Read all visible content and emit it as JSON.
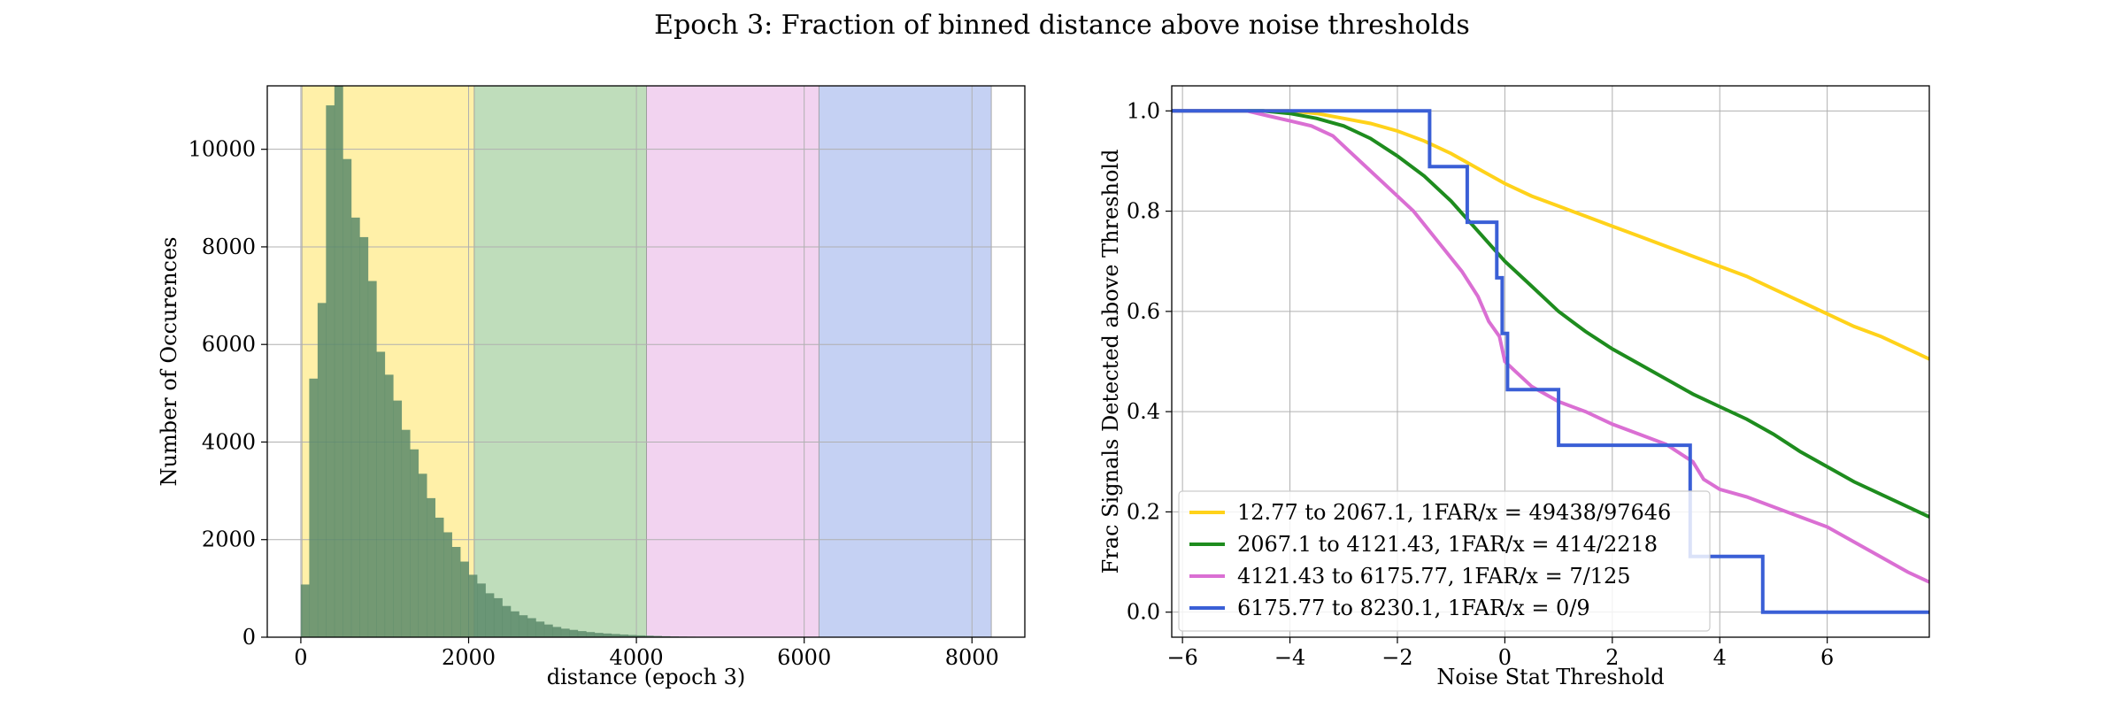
{
  "figure": {
    "suptitle": "Epoch 3: Fraction of binned distance above noise thresholds"
  },
  "chart_data": [
    {
      "type": "bar",
      "subtype": "histogram",
      "xlabel": "distance (epoch 3)",
      "ylabel": "Number of Occurences",
      "xlim": [
        -400,
        8630
      ],
      "ylim": [
        0,
        11300
      ],
      "xticks": [
        0,
        2000,
        4000,
        6000,
        8000
      ],
      "yticks": [
        0,
        2000,
        4000,
        6000,
        8000,
        10000
      ],
      "grid": true,
      "bar_color": "#5a8a6a",
      "bin_width": 100,
      "bin_start": 0,
      "values": [
        1080,
        5300,
        6850,
        10900,
        11300,
        9800,
        8600,
        8200,
        7300,
        5850,
        5380,
        4850,
        4250,
        3850,
        3350,
        2850,
        2450,
        2150,
        1850,
        1550,
        1280,
        1100,
        900,
        800,
        640,
        530,
        450,
        390,
        320,
        260,
        210,
        175,
        150,
        125,
        105,
        88,
        76,
        65,
        55,
        45,
        38,
        32,
        26,
        20,
        15,
        12,
        10,
        9,
        8,
        6,
        5,
        4,
        4,
        3,
        2,
        2,
        1,
        1,
        1
      ],
      "bands": [
        {
          "from": 12.77,
          "to": 2067.1,
          "color": "#fff0a8"
        },
        {
          "from": 2067.1,
          "to": 4121.43,
          "color": "#bfddbb"
        },
        {
          "from": 4121.43,
          "to": 6175.77,
          "color": "#f2d3f0"
        },
        {
          "from": 6175.77,
          "to": 8230.1,
          "color": "#c5d1f3"
        }
      ]
    },
    {
      "type": "line",
      "subtype": "step",
      "xlabel": "Noise Stat Threshold",
      "ylabel": "Frac Signals Detected above Threshold",
      "xlim": [
        -6.2,
        7.9
      ],
      "ylim": [
        -0.05,
        1.05
      ],
      "xticks": [
        -6,
        -4,
        -2,
        0,
        2,
        4,
        6
      ],
      "yticks": [
        0.0,
        0.2,
        0.4,
        0.6,
        0.8,
        1.0
      ],
      "grid": true,
      "legend_position": "lower-left",
      "series": [
        {
          "name": "12.77 to 2067.1, 1FAR/x = 49438/97646",
          "color": "#ffd21a",
          "x": [
            -6.2,
            -4.0,
            -3.5,
            -3.0,
            -2.5,
            -2.0,
            -1.5,
            -1.0,
            -0.5,
            0.0,
            0.5,
            1.0,
            1.5,
            2.0,
            2.5,
            3.0,
            3.5,
            4.0,
            4.5,
            5.0,
            5.5,
            6.0,
            6.5,
            7.0,
            7.5,
            7.9
          ],
          "y": [
            1.0,
            1.0,
            0.995,
            0.985,
            0.975,
            0.96,
            0.94,
            0.915,
            0.885,
            0.855,
            0.83,
            0.81,
            0.79,
            0.77,
            0.75,
            0.73,
            0.71,
            0.69,
            0.67,
            0.645,
            0.62,
            0.595,
            0.57,
            0.55,
            0.525,
            0.505
          ]
        },
        {
          "name": "2067.1 to 4121.43, 1FAR/x = 414/2218",
          "color": "#1e8c1e",
          "x": [
            -6.2,
            -4.5,
            -4.0,
            -3.5,
            -3.0,
            -2.5,
            -2.0,
            -1.5,
            -1.0,
            -0.5,
            0.0,
            0.5,
            1.0,
            1.5,
            2.0,
            2.5,
            3.0,
            3.5,
            4.0,
            4.5,
            5.0,
            5.5,
            6.0,
            6.5,
            7.0,
            7.5,
            7.9
          ],
          "y": [
            1.0,
            1.0,
            0.995,
            0.985,
            0.97,
            0.945,
            0.91,
            0.87,
            0.82,
            0.76,
            0.7,
            0.65,
            0.6,
            0.56,
            0.525,
            0.495,
            0.465,
            0.435,
            0.41,
            0.385,
            0.355,
            0.32,
            0.29,
            0.26,
            0.235,
            0.21,
            0.19
          ]
        },
        {
          "name": "4121.43 to 6175.77, 1FAR/x = 7/125",
          "color": "#da6fd3",
          "x": [
            -6.2,
            -4.8,
            -4.4,
            -4.0,
            -3.6,
            -3.2,
            -2.9,
            -2.6,
            -2.3,
            -2.0,
            -1.7,
            -1.4,
            -1.1,
            -0.8,
            -0.5,
            -0.3,
            -0.1,
            0.0,
            0.2,
            0.5,
            1.0,
            1.5,
            2.0,
            2.5,
            3.0,
            3.5,
            3.7,
            4.0,
            4.5,
            5.0,
            5.5,
            6.0,
            6.5,
            7.0,
            7.5,
            7.9
          ],
          "y": [
            1.0,
            1.0,
            0.99,
            0.98,
            0.97,
            0.95,
            0.92,
            0.89,
            0.86,
            0.83,
            0.8,
            0.76,
            0.72,
            0.68,
            0.63,
            0.58,
            0.55,
            0.5,
            0.48,
            0.45,
            0.42,
            0.4,
            0.375,
            0.355,
            0.335,
            0.3,
            0.265,
            0.245,
            0.23,
            0.21,
            0.19,
            0.17,
            0.14,
            0.11,
            0.08,
            0.06
          ]
        },
        {
          "name": "6175.77 to 8230.1, 1FAR/x = 0/9",
          "color": "#3a5fd6",
          "x": [
            -6.2,
            -1.4,
            -1.4,
            -0.7,
            -0.7,
            -0.15,
            -0.15,
            -0.05,
            -0.05,
            0.05,
            0.05,
            1.0,
            1.0,
            3.45,
            3.45,
            4.8,
            4.8,
            7.9
          ],
          "y": [
            1.0,
            1.0,
            0.889,
            0.889,
            0.778,
            0.778,
            0.667,
            0.667,
            0.556,
            0.556,
            0.444,
            0.444,
            0.333,
            0.333,
            0.111,
            0.111,
            0.0,
            0.0
          ]
        }
      ]
    }
  ]
}
